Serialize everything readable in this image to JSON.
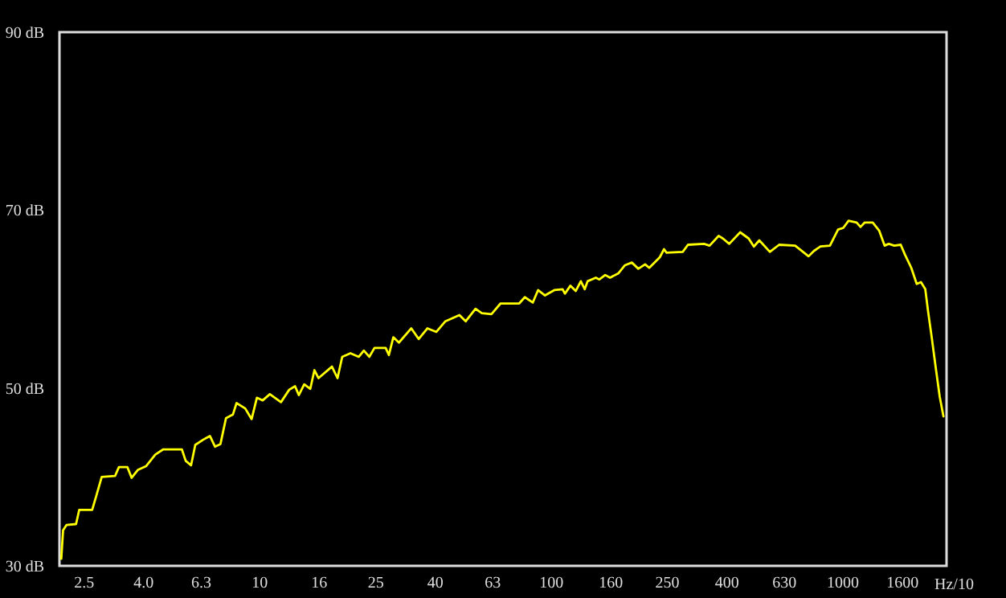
{
  "chart_data": {
    "type": "line",
    "xlabel": "Hz/10",
    "x": [
      2.1,
      2.13,
      2.19,
      2.36,
      2.42,
      2.68,
      2.77,
      2.89,
      3.21,
      3.31,
      3.54,
      3.66,
      3.85,
      4.1,
      4.41,
      4.7,
      5.44,
      5.61,
      5.85,
      6.05,
      6.45,
      6.79,
      7.07,
      7.38,
      7.71,
      8.14,
      8.38,
      8.97,
      9.44,
      9.84,
      10.3,
      10.9,
      11.9,
      12.7,
      13.3,
      13.7,
      14.3,
      15.0,
      15.5,
      16.0,
      17.8,
      18.6,
      19.3,
      20.6,
      22.0,
      22.9,
      23.9,
      24.9,
      27.2,
      27.9,
      28.9,
      30.2,
      33.3,
      35.3,
      37.8,
      40.6,
      43.6,
      48.7,
      51.2,
      55.3,
      58.1,
      62.7,
      67.4,
      78.1,
      81.6,
      86.9,
      90.6,
      95.7,
      103,
      110,
      112,
      117,
      122,
      127,
      131,
      134,
      143,
      147,
      154,
      160,
      171,
      180,
      190,
      200,
      211,
      218,
      237,
      245,
      250,
      284,
      296,
      336,
      351,
      377,
      390,
      410,
      447,
      478,
      498,
      520,
      565,
      608,
      690,
      767,
      800,
      842,
      908,
      968,
      1009,
      1052,
      1121,
      1156,
      1195,
      1273,
      1339,
      1398,
      1445,
      1509,
      1588,
      1641,
      1726,
      1802,
      1863,
      1928,
      1969,
      2028,
      2099,
      2161,
      2225
    ],
    "series": [
      {
        "color": "#ffff00",
        "values": [
          30.8,
          34.0,
          34.6,
          34.7,
          36.3,
          36.3,
          37.9,
          40.0,
          40.1,
          41.1,
          41.1,
          39.9,
          40.8,
          41.2,
          42.5,
          43.1,
          43.1,
          41.8,
          41.3,
          43.6,
          44.2,
          44.6,
          43.4,
          43.7,
          46.6,
          47.0,
          48.3,
          47.7,
          46.5,
          48.9,
          48.6,
          49.3,
          48.4,
          49.8,
          50.2,
          49.2,
          50.4,
          49.9,
          52.0,
          51.1,
          52.4,
          51.1,
          53.5,
          53.9,
          53.5,
          54.2,
          53.5,
          54.5,
          54.5,
          53.7,
          55.7,
          55.1,
          56.7,
          55.5,
          56.7,
          56.3,
          57.5,
          58.2,
          57.5,
          58.9,
          58.4,
          58.3,
          59.5,
          59.5,
          60.2,
          59.6,
          61.0,
          60.4,
          61.0,
          61.1,
          60.6,
          61.5,
          60.9,
          62.0,
          61.1,
          62.0,
          62.4,
          62.2,
          62.7,
          62.4,
          62.9,
          63.8,
          64.1,
          63.4,
          63.9,
          63.5,
          64.7,
          65.6,
          65.2,
          65.3,
          66.1,
          66.2,
          66.0,
          67.1,
          66.8,
          66.2,
          67.5,
          66.8,
          65.9,
          66.6,
          65.3,
          66.1,
          66.0,
          64.8,
          65.4,
          65.9,
          66.0,
          67.8,
          68.0,
          68.8,
          68.6,
          68.1,
          68.6,
          68.6,
          67.7,
          66.0,
          66.2,
          66.0,
          66.1,
          65.0,
          63.5,
          61.7,
          61.9,
          61.1,
          58.7,
          55.7,
          52.0,
          49.0,
          46.8
        ]
      }
    ],
    "log": "x",
    "xlim": [
      2.07,
      2280
    ],
    "xticks": [
      2.5,
      {
        "value": 4,
        "label": "4.0"
      },
      6.3,
      10,
      16,
      25,
      40,
      63,
      100,
      160,
      250,
      400,
      630,
      1000,
      1600
    ],
    "ylim": [
      30,
      90
    ],
    "yticks": [
      {
        "value": 30,
        "label": "30 dB"
      },
      {
        "value": 50,
        "label": "50 dB"
      },
      {
        "value": 70,
        "label": "70 dB"
      },
      {
        "value": 90,
        "label": "90 dB"
      }
    ]
  }
}
